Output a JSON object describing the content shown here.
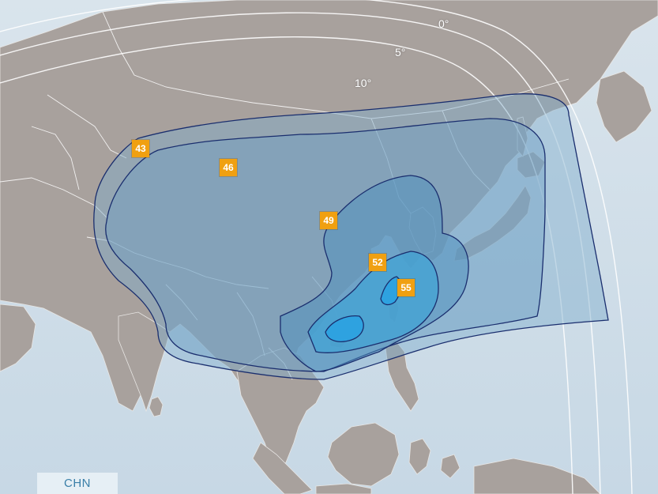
{
  "colors": {
    "ocean": "#cfdde8",
    "land": "#a8a19d",
    "border": "#ffffff",
    "label_bg": "#f0a011",
    "label_text": "#ffffff",
    "contour_line": "#1a2e6e",
    "tag_text": "#3a7fa8"
  },
  "elevation_labels": [
    {
      "text": "0°"
    },
    {
      "text": "5°"
    },
    {
      "text": "10°"
    }
  ],
  "contours": [
    {
      "value": "43"
    },
    {
      "value": "46"
    },
    {
      "value": "49"
    },
    {
      "value": "52"
    },
    {
      "value": "55"
    }
  ],
  "region_tag": {
    "label": "CHN"
  }
}
